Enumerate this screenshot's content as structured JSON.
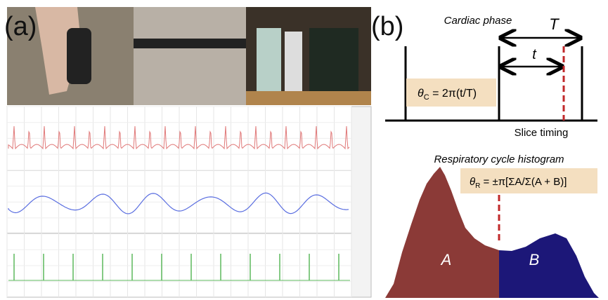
{
  "panel_a": {
    "label": "(a)"
  },
  "panel_b": {
    "label": "(b)",
    "cardiac": {
      "title": "Cardiac phase",
      "period_label": "T",
      "time_label": "t",
      "formula": {
        "symbol": "θ",
        "subscript": "C",
        "expression": " = 2π(t/T)"
      },
      "slice_label": "Slice timing"
    },
    "respiratory": {
      "title": "Respiratory cycle histogram",
      "formula": {
        "symbol": "θ",
        "subscript": "R",
        "expression": " = ±π[ΣA/Σ(A + B)]"
      },
      "region_a": "A",
      "region_b": "B"
    }
  }
}
